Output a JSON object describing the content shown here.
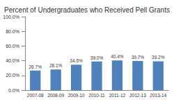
{
  "chart_data": {
    "type": "bar",
    "title": "Percent of Undergraduates who Received Pell Grants",
    "categories": [
      "2007-08",
      "2008-09",
      "2009-10",
      "2010-11",
      "2011-12",
      "2012-13",
      "2013-14"
    ],
    "values": [
      26.7,
      28.1,
      34.6,
      39.0,
      40.4,
      39.7,
      39.2
    ],
    "value_labels": [
      "26.7%",
      "28.1%",
      "34.6%",
      "39.0%",
      "40.4%",
      "39.7%",
      "39.2%"
    ],
    "color": "#4f81bd",
    "ylim": [
      0,
      100
    ],
    "yticks": [
      {
        "value": 0,
        "label": "0.0%"
      },
      {
        "value": 20,
        "label": "20.0%"
      },
      {
        "value": 40,
        "label": "40.0%"
      },
      {
        "value": 60,
        "label": "60.0%"
      },
      {
        "value": 80,
        "label": "80.0%"
      },
      {
        "value": 100,
        "label": "100.0%"
      }
    ],
    "grid": false,
    "data_labels": true
  }
}
